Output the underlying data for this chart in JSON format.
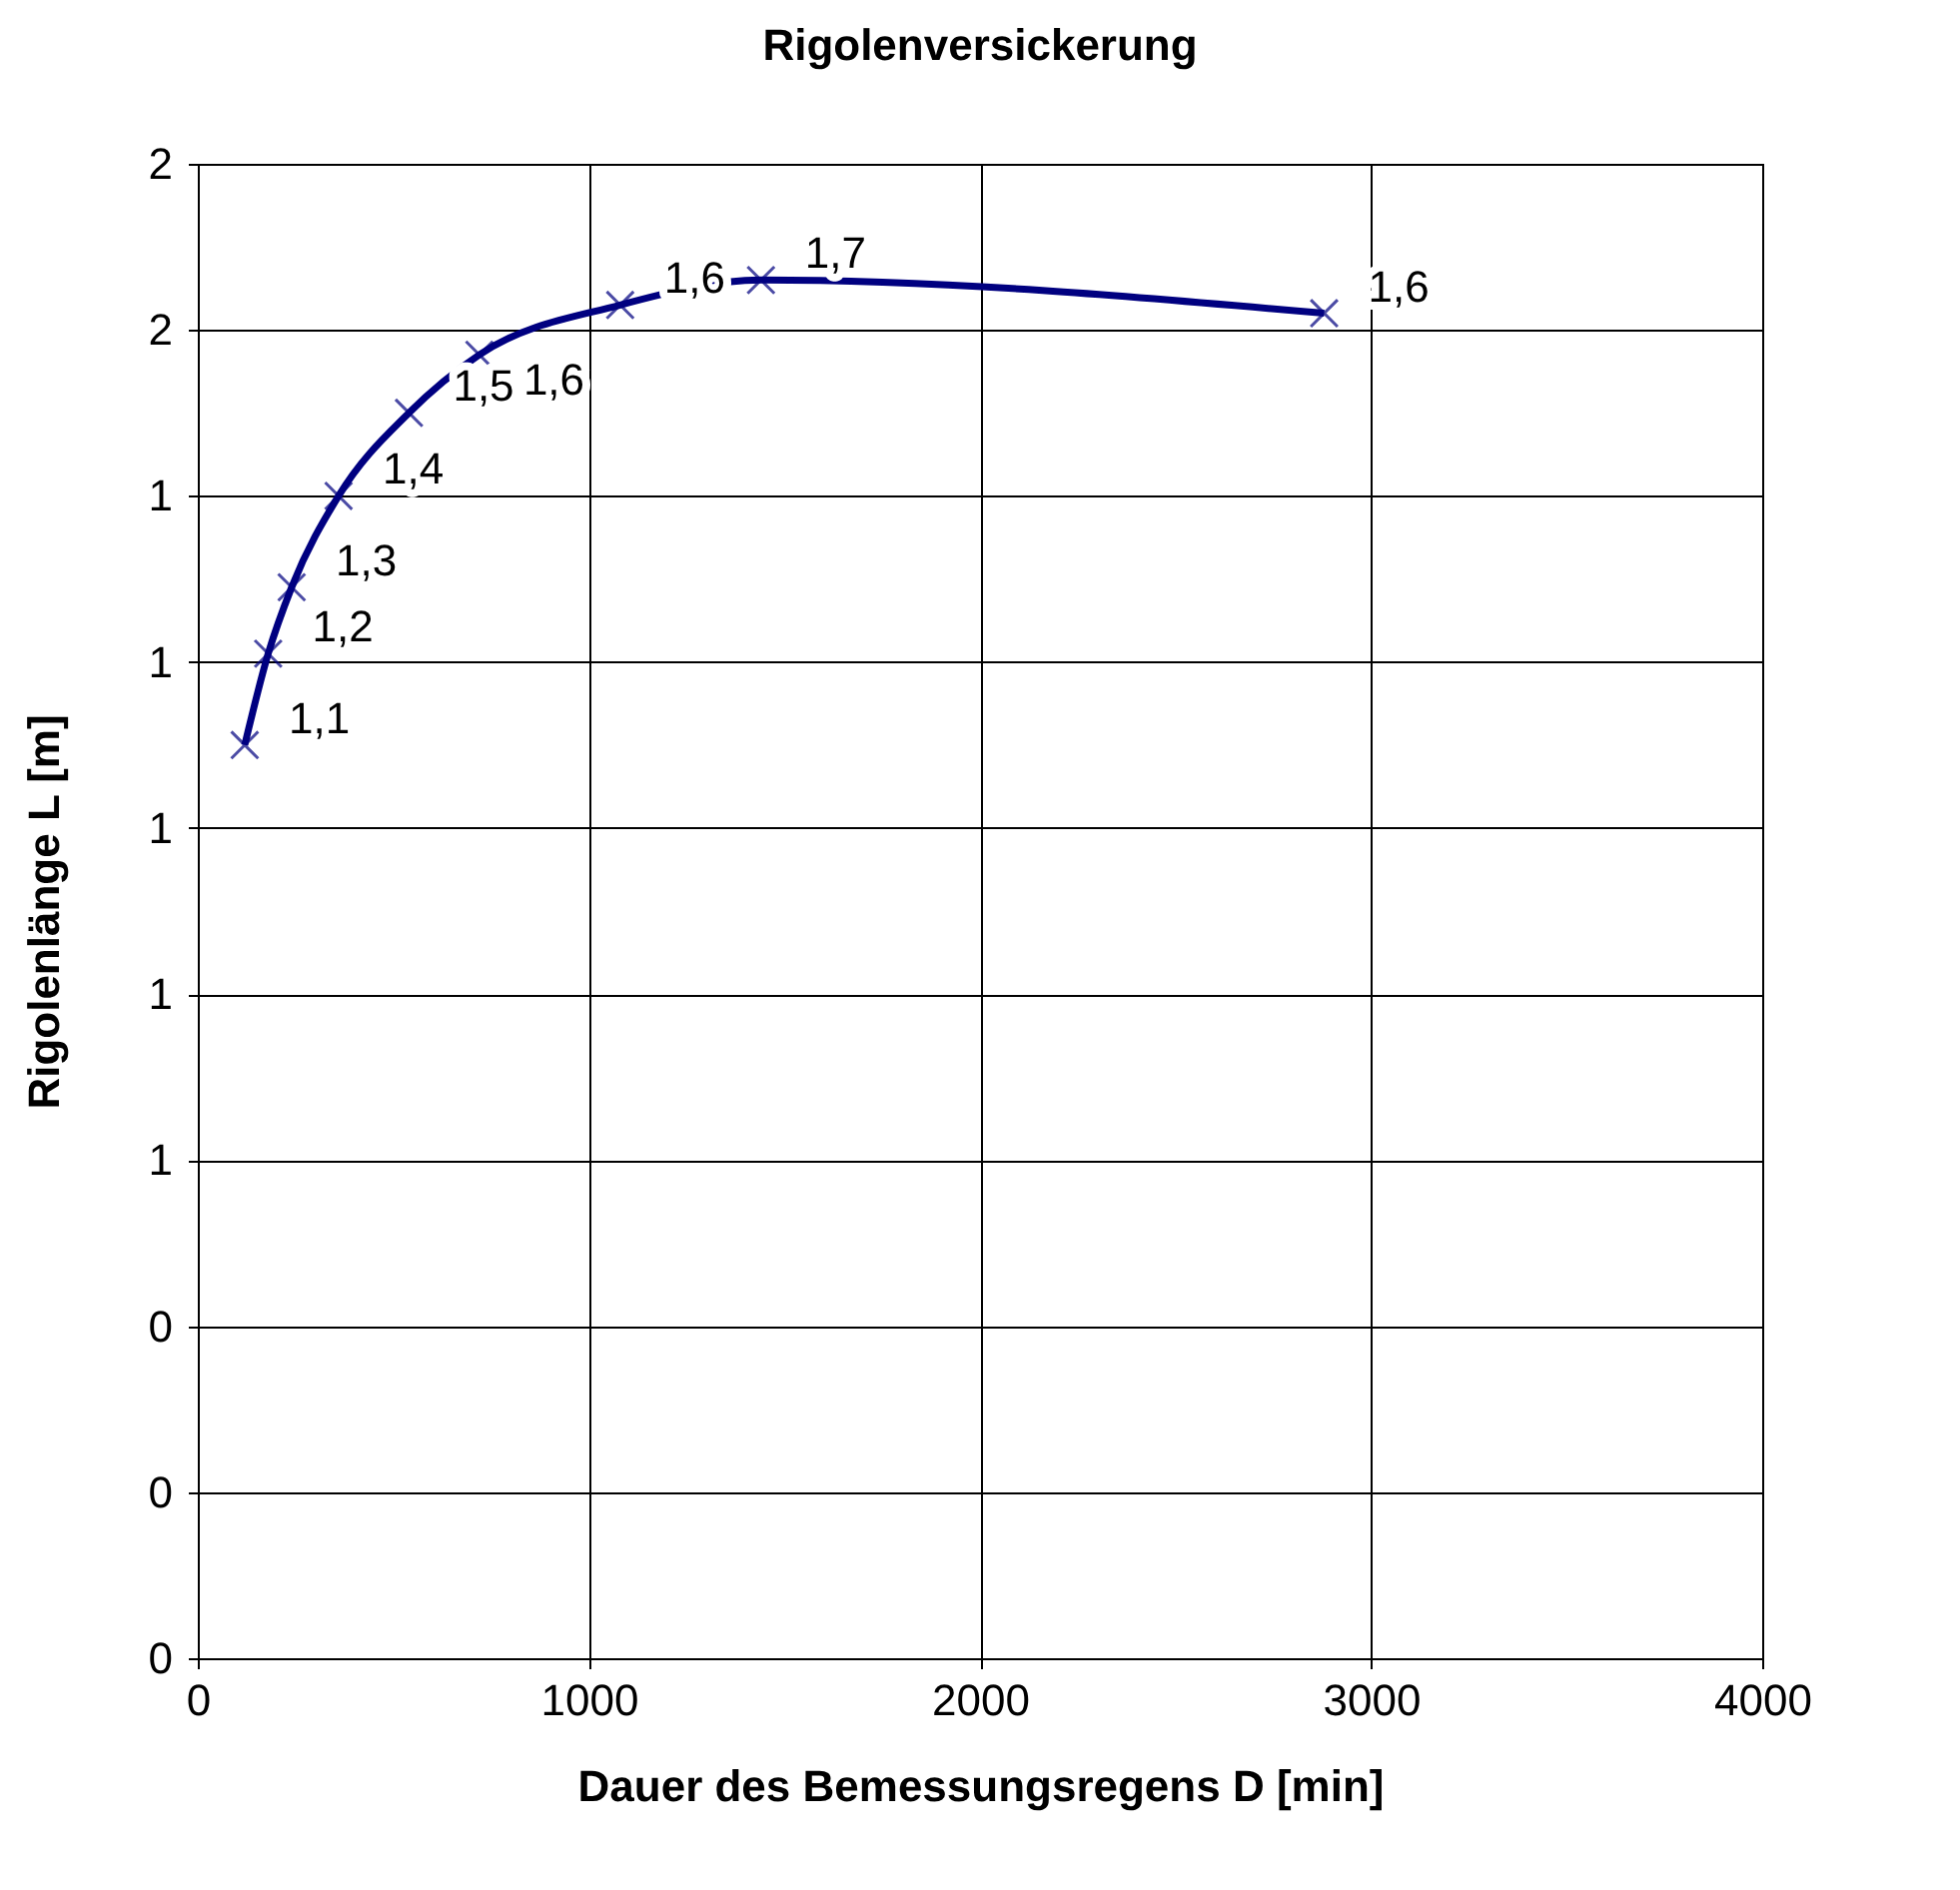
{
  "chart_data": {
    "type": "line",
    "title": "Rigolenversickerung",
    "xlabel": "Dauer des Bemessungsregens  D [min]",
    "ylabel": "Rigolenlänge L [m]",
    "x": [
      120,
      180,
      240,
      360,
      540,
      720,
      1080,
      1440,
      2880
    ],
    "series": [
      {
        "color": "#000080",
        "values": [
          1.1,
          1.21,
          1.29,
          1.4,
          1.5,
          1.57,
          1.63,
          1.66,
          1.62
        ],
        "value_labels": [
          "1,1",
          "1,2",
          "1,3",
          "1,4",
          "1,5",
          "1,6",
          "1,6",
          "1,7",
          "1,6"
        ]
      }
    ],
    "xlim": [
      0,
      4000
    ],
    "xticks": [
      0,
      1000,
      2000,
      3000,
      4000
    ],
    "ylim": [
      0,
      1.8
    ],
    "yticks": [
      {
        "value": 0,
        "label": "0"
      },
      {
        "value": 0.2,
        "label": "0"
      },
      {
        "value": 0.4,
        "label": "0"
      },
      {
        "value": 0.6,
        "label": "1"
      },
      {
        "value": 0.8,
        "label": "1"
      },
      {
        "value": 1.0,
        "label": "1"
      },
      {
        "value": 1.2,
        "label": "1"
      },
      {
        "value": 1.4,
        "label": "1"
      },
      {
        "value": 1.6,
        "label": "2"
      },
      {
        "value": 1.8,
        "label": "2"
      }
    ],
    "grid": true,
    "marker": "cross",
    "line_style": "solid"
  }
}
